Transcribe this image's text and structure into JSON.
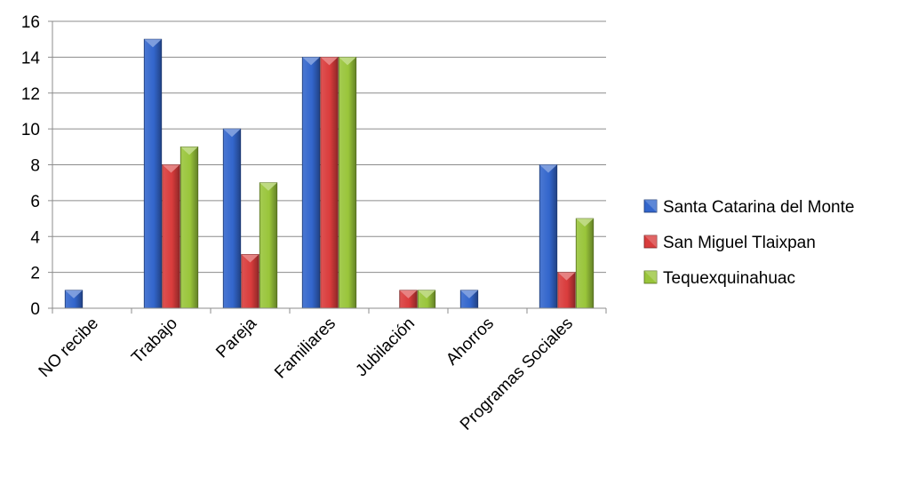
{
  "chart_data": {
    "type": "bar",
    "title": "",
    "xlabel": "",
    "ylabel": "",
    "categories": [
      "NO recibe",
      "Trabajo",
      "Pareja",
      "Familiares",
      "Jubilación",
      "Ahorros",
      "Programas Sociales"
    ],
    "series": [
      {
        "name": "Santa Catarina del Monte",
        "color": "#3366CC",
        "values": [
          1,
          15,
          10,
          14,
          0,
          1,
          8
        ]
      },
      {
        "name": "San Miguel Tlaixpan",
        "color": "#D93C3C",
        "values": [
          0,
          8,
          3,
          14,
          1,
          0,
          2
        ]
      },
      {
        "name": "Tequexquinahuac",
        "color": "#99C53A",
        "values": [
          0,
          9,
          7,
          14,
          1,
          0,
          5
        ]
      }
    ],
    "ylim": [
      0,
      16
    ],
    "yticks": [
      "0",
      "2",
      "4",
      "6",
      "8",
      "10",
      "12",
      "14",
      "16"
    ],
    "grid": true,
    "legend_position": "right"
  }
}
